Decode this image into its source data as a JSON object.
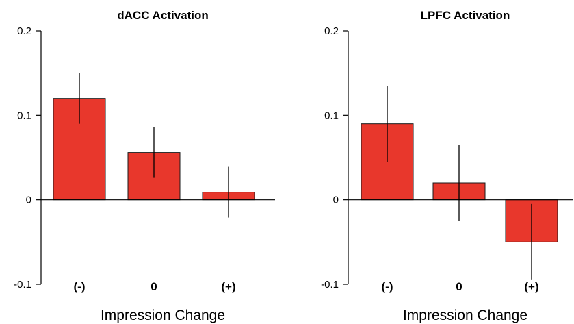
{
  "chart_data": [
    {
      "type": "bar",
      "title": "dACC Activation",
      "xlabel": "Impression Change",
      "ylabel": "",
      "categories": [
        "(-)",
        "0",
        "(+)"
      ],
      "values": [
        0.12,
        0.056,
        0.009
      ],
      "errors": [
        0.03,
        0.03,
        0.03
      ],
      "ylim": [
        -0.1,
        0.2
      ],
      "yticks": [
        0.2,
        0.1,
        0,
        -0.1
      ],
      "ytick_labels": [
        "0.2",
        "0.1",
        "0",
        "-0.1"
      ],
      "color": "#e8372c",
      "grid": false
    },
    {
      "type": "bar",
      "title": "LPFC Activation",
      "xlabel": "Impression Change",
      "ylabel": "",
      "categories": [
        "(-)",
        "0",
        "(+)"
      ],
      "values": [
        0.09,
        0.02,
        -0.05
      ],
      "errors": [
        0.045,
        0.045,
        0.045
      ],
      "ylim": [
        -0.1,
        0.2
      ],
      "yticks": [
        0.2,
        0.1,
        0,
        -0.1
      ],
      "ytick_labels": [
        "0.2",
        "0.1",
        "0",
        "-0.1"
      ],
      "color": "#e8372c",
      "grid": false
    }
  ]
}
